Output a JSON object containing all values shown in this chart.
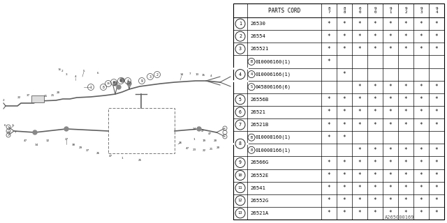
{
  "watermark": "A265000169",
  "table": {
    "year_labels": [
      "8\n7",
      "8\n8",
      "0\n0",
      "9\n0",
      "9\n1",
      "9\n2",
      "9\n3",
      "9\n4"
    ],
    "rows": [
      {
        "num": "1",
        "circle": true,
        "code": "26530",
        "stars": [
          1,
          1,
          1,
          1,
          1,
          1,
          1,
          1
        ],
        "group": null
      },
      {
        "num": "2",
        "circle": true,
        "code": "26554",
        "stars": [
          1,
          1,
          1,
          1,
          1,
          1,
          1,
          1
        ],
        "group": null
      },
      {
        "num": "3",
        "circle": true,
        "code": "265521",
        "stars": [
          1,
          1,
          1,
          1,
          1,
          1,
          1,
          1
        ],
        "group": null
      },
      {
        "num": "B",
        "circle": true,
        "code": "010006160(1)",
        "stars": [
          1,
          0,
          0,
          0,
          0,
          0,
          0,
          0
        ],
        "group": "4a"
      },
      {
        "num": "4",
        "circle": true,
        "code": "010006166(1)",
        "stars": [
          0,
          1,
          0,
          0,
          0,
          0,
          0,
          0
        ],
        "group": "4b"
      },
      {
        "num": "S",
        "circle": true,
        "code": "045806166(6)",
        "stars": [
          0,
          0,
          1,
          1,
          1,
          1,
          1,
          1
        ],
        "group": "4c"
      },
      {
        "num": "5",
        "circle": true,
        "code": "26556B",
        "stars": [
          1,
          1,
          1,
          1,
          1,
          1,
          1,
          1
        ],
        "group": null
      },
      {
        "num": "6",
        "circle": true,
        "code": "26521",
        "stars": [
          1,
          1,
          1,
          1,
          1,
          1,
          1,
          1
        ],
        "group": null
      },
      {
        "num": "7",
        "circle": true,
        "code": "26521B",
        "stars": [
          1,
          1,
          1,
          1,
          1,
          1,
          1,
          1
        ],
        "group": null
      },
      {
        "num": "B",
        "circle": true,
        "code": "010008160(1)",
        "stars": [
          1,
          1,
          0,
          0,
          0,
          0,
          0,
          0
        ],
        "group": "8a"
      },
      {
        "num": "8",
        "circle": true,
        "code": "010008166(1)",
        "stars": [
          0,
          0,
          1,
          1,
          1,
          1,
          1,
          1
        ],
        "group": "8b"
      },
      {
        "num": "9",
        "circle": true,
        "code": "26566G",
        "stars": [
          1,
          1,
          1,
          1,
          1,
          1,
          1,
          1
        ],
        "group": null
      },
      {
        "num": "10",
        "circle": true,
        "code": "26552E",
        "stars": [
          1,
          1,
          1,
          1,
          1,
          1,
          1,
          1
        ],
        "group": null
      },
      {
        "num": "11",
        "circle": true,
        "code": "26541",
        "stars": [
          1,
          1,
          1,
          1,
          1,
          1,
          1,
          1
        ],
        "group": null
      },
      {
        "num": "12",
        "circle": true,
        "code": "26552G",
        "stars": [
          1,
          1,
          1,
          1,
          1,
          1,
          1,
          1
        ],
        "group": null
      },
      {
        "num": "13",
        "circle": true,
        "code": "26521A",
        "stars": [
          1,
          1,
          1,
          1,
          1,
          1,
          1,
          1
        ],
        "group": null
      }
    ],
    "merged_groups": {
      "g4": {
        "rows": [
          3,
          4,
          5
        ],
        "label": "4"
      },
      "g8": {
        "rows": [
          9,
          10
        ],
        "label": "8"
      }
    }
  }
}
